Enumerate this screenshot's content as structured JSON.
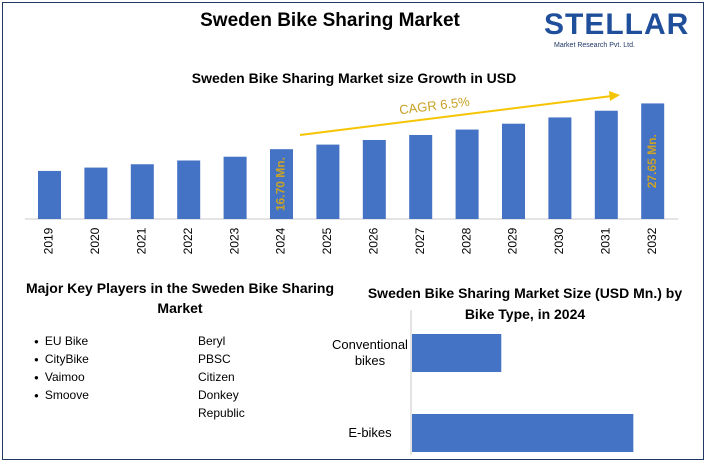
{
  "title": "Sweden Bike Sharing Market",
  "logo": {
    "name": "STELLAR",
    "tagline": "Market Research Pvt. Ltd."
  },
  "colors": {
    "bar": "#4472c4",
    "arrow": "#f5c400",
    "label": "#c9a227",
    "border": "#1f3864"
  },
  "chart_data": [
    {
      "type": "bar",
      "title": "Sweden Bike Sharing Market size Growth in USD",
      "categories": [
        "2019",
        "2020",
        "2021",
        "2022",
        "2023",
        "2024",
        "2025",
        "2026",
        "2027",
        "2028",
        "2029",
        "2030",
        "2031",
        "2032"
      ],
      "values": [
        11.5,
        12.3,
        13.1,
        14.0,
        14.9,
        16.7,
        17.8,
        18.9,
        20.1,
        21.4,
        22.8,
        24.3,
        25.9,
        27.65
      ],
      "labeled_points": [
        {
          "category": "2024",
          "label": "16.70 Mn."
        },
        {
          "category": "2032",
          "label": "27.65 Mn."
        }
      ],
      "annotation": "CAGR 6.5%",
      "grid": false
    },
    {
      "type": "bar",
      "orientation": "horizontal",
      "title": "Sweden Bike Sharing Market Size (USD Mn.) by Bike Type, in 2024",
      "categories": [
        "Conventional bikes",
        "E-bikes"
      ],
      "values": [
        4.8,
        11.9
      ],
      "grid": false
    }
  ],
  "key_players": {
    "title": "Major Key Players in the Sweden Bike Sharing Market",
    "left": [
      "EU Bike",
      "CityBike",
      "Vaimoo",
      "Smoove"
    ],
    "right": [
      "Beryl",
      "PBSC",
      "Citizen",
      "Donkey",
      "Republic"
    ]
  }
}
